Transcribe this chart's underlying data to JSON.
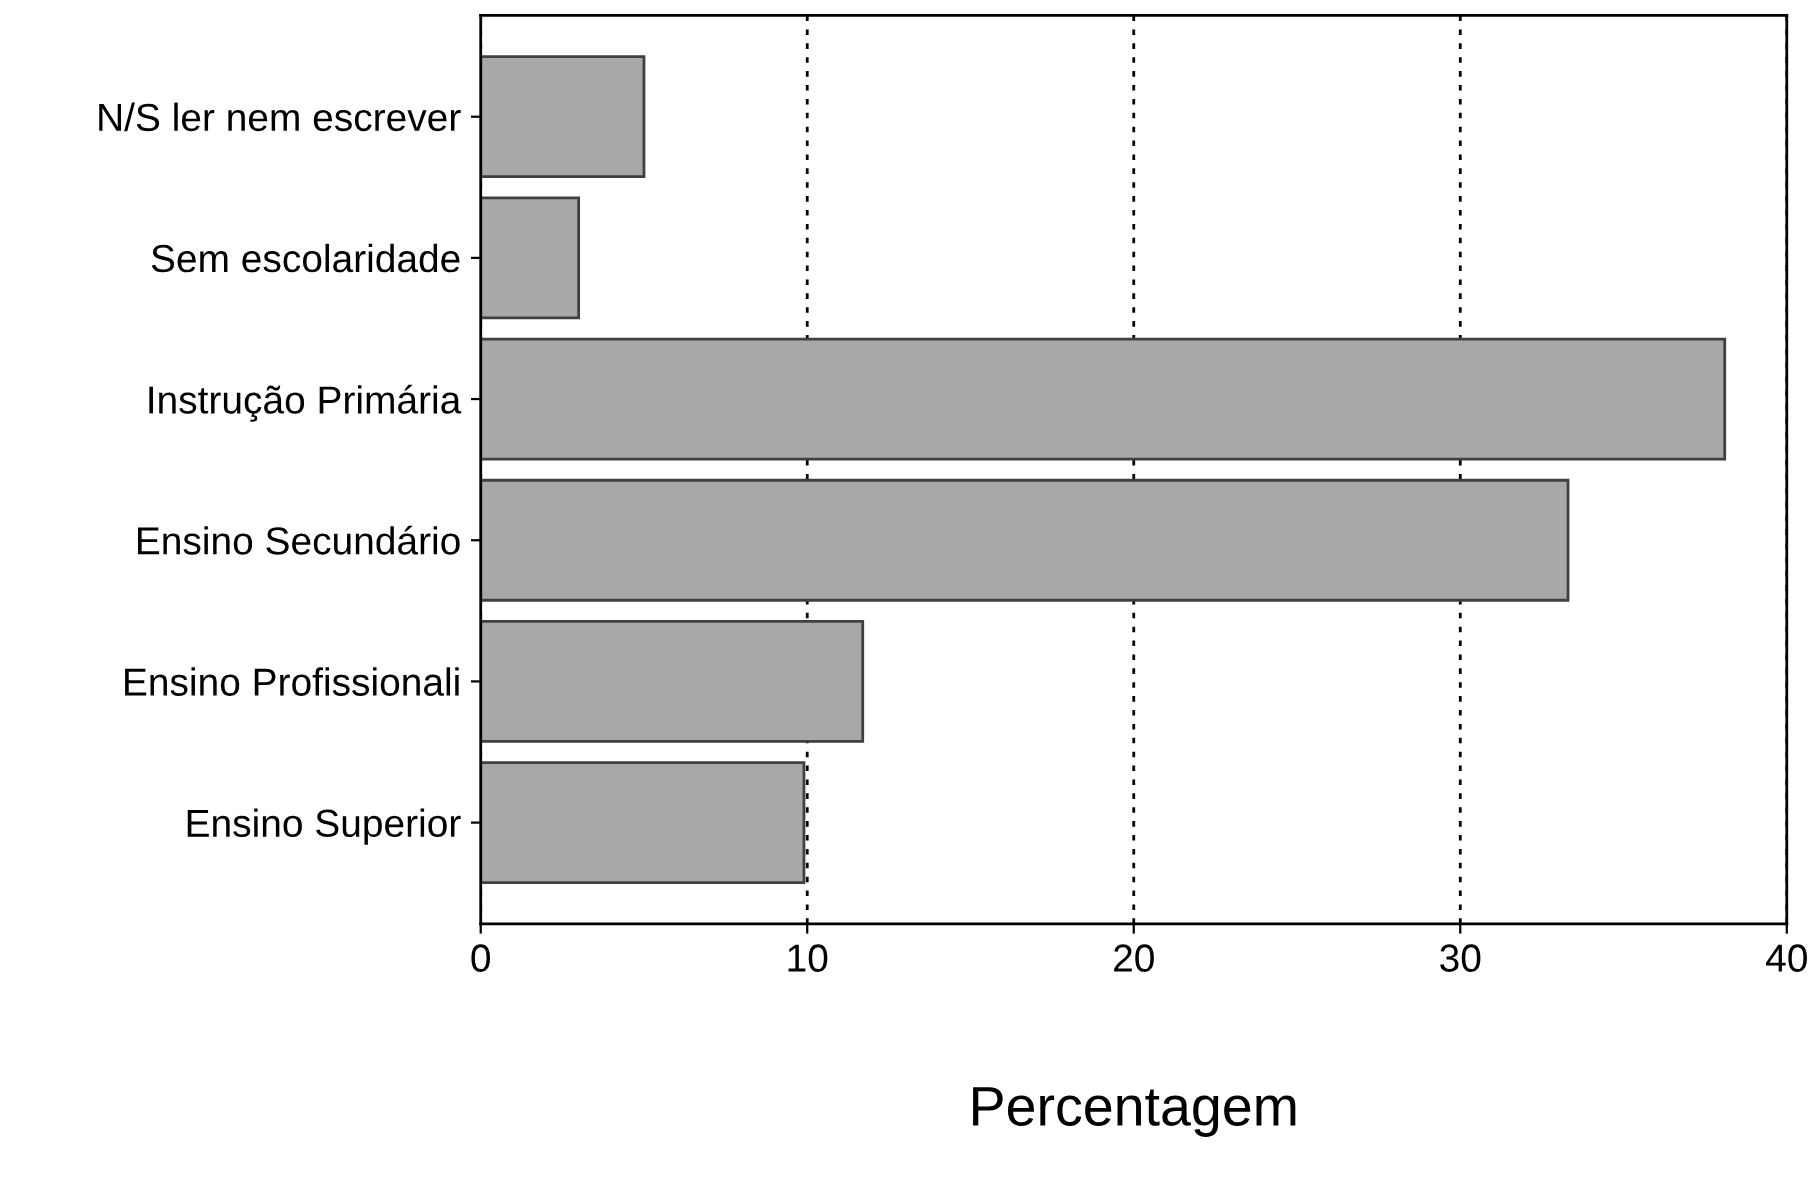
{
  "chart_data": {
    "type": "bar",
    "orientation": "horizontal",
    "xlabel": "Percentagem",
    "categories": [
      "N/S ler nem escrever",
      "Sem escolaridade",
      "Instrução Primária",
      "Ensino Secundário",
      "Ensino Profissionali",
      "Ensino Superior"
    ],
    "values": [
      5.0,
      3.0,
      38.1,
      33.3,
      11.7,
      9.9
    ],
    "color": "#a8a8a8",
    "xlim": [
      0,
      40
    ],
    "xticks": [
      0,
      10,
      20,
      30,
      40
    ],
    "grid": "x"
  }
}
